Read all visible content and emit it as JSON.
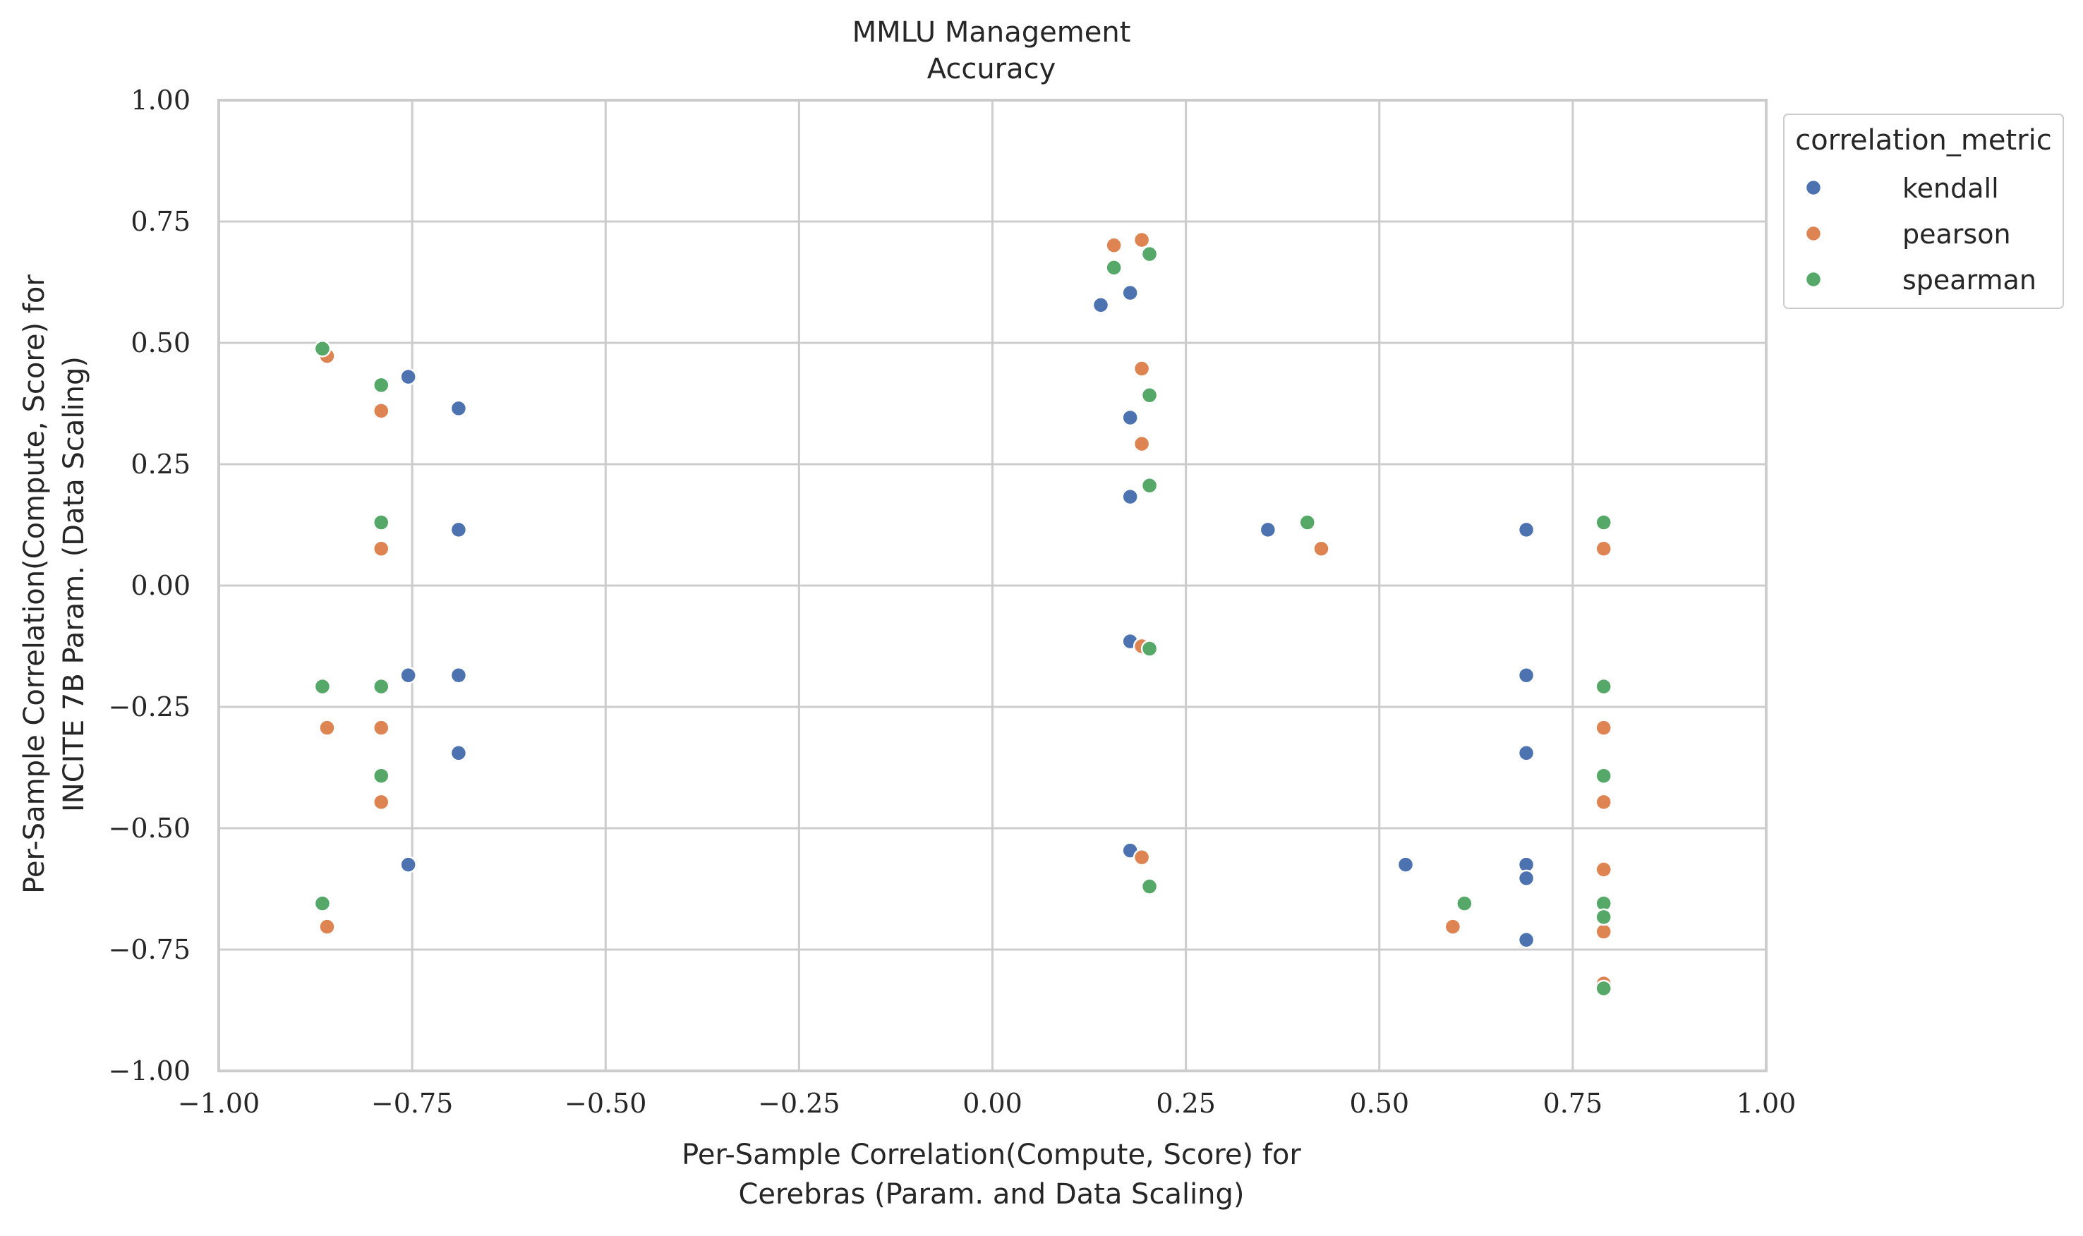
{
  "chart_data": {
    "type": "scatter",
    "title": "MMLU Management",
    "subtitle": "Accuracy",
    "xlabel": [
      "Per-Sample Correlation(Compute, Score) for",
      "Cerebras (Param. and Data Scaling)"
    ],
    "ylabel": [
      "Per-Sample Correlation(Compute, Score) for",
      "INCITE 7B Param. (Data Scaling)"
    ],
    "xlim": [
      -1.0,
      1.0
    ],
    "ylim": [
      -1.0,
      1.0
    ],
    "xticks": [
      -1.0,
      -0.75,
      -0.5,
      -0.25,
      0.0,
      0.25,
      0.5,
      0.75,
      1.0
    ],
    "yticks": [
      -1.0,
      -0.75,
      -0.5,
      -0.25,
      0.0,
      0.25,
      0.5,
      0.75,
      1.0
    ],
    "xtick_labels": [
      "−1.00",
      "−0.75",
      "−0.50",
      "−0.25",
      "0.00",
      "0.25",
      "0.50",
      "0.75",
      "1.00"
    ],
    "ytick_labels": [
      "−1.00",
      "−0.75",
      "−0.50",
      "−0.25",
      "0.00",
      "0.25",
      "0.50",
      "0.75",
      "1.00"
    ],
    "grid": true,
    "legend": {
      "title": "correlation_metric",
      "position": "outside-top-right"
    },
    "series": [
      {
        "name": "kendall",
        "color": "#4c72b0",
        "points": [
          [
            -0.755,
            0.43
          ],
          [
            -0.69,
            0.365
          ],
          [
            -0.69,
            0.115
          ],
          [
            -0.755,
            -0.185
          ],
          [
            -0.69,
            -0.185
          ],
          [
            -0.69,
            -0.345
          ],
          [
            -0.755,
            -0.575
          ],
          [
            0.14,
            0.578
          ],
          [
            0.178,
            0.603
          ],
          [
            0.178,
            0.346
          ],
          [
            0.178,
            0.183
          ],
          [
            0.178,
            -0.115
          ],
          [
            0.178,
            -0.546
          ],
          [
            0.356,
            0.115
          ],
          [
            0.534,
            -0.575
          ],
          [
            0.69,
            0.115
          ],
          [
            0.69,
            -0.185
          ],
          [
            0.69,
            -0.345
          ],
          [
            0.69,
            -0.575
          ],
          [
            0.69,
            -0.603
          ],
          [
            0.69,
            -0.73
          ]
        ]
      },
      {
        "name": "pearson",
        "color": "#dd8452",
        "points": [
          [
            -0.86,
            0.473
          ],
          [
            -0.79,
            0.36
          ],
          [
            -0.79,
            0.076
          ],
          [
            -0.86,
            -0.293
          ],
          [
            -0.79,
            -0.293
          ],
          [
            -0.79,
            -0.446
          ],
          [
            -0.86,
            -0.703
          ],
          [
            0.157,
            0.701
          ],
          [
            0.193,
            0.712
          ],
          [
            0.193,
            0.447
          ],
          [
            0.193,
            0.292
          ],
          [
            0.193,
            -0.125
          ],
          [
            0.193,
            -0.56
          ],
          [
            0.425,
            0.076
          ],
          [
            0.595,
            -0.703
          ],
          [
            0.79,
            0.076
          ],
          [
            0.79,
            -0.293
          ],
          [
            0.79,
            -0.446
          ],
          [
            0.79,
            -0.585
          ],
          [
            0.79,
            -0.713
          ],
          [
            0.79,
            -0.82
          ]
        ]
      },
      {
        "name": "spearman",
        "color": "#55a868",
        "points": [
          [
            -0.866,
            0.488
          ],
          [
            -0.79,
            0.413
          ],
          [
            -0.79,
            0.13
          ],
          [
            -0.866,
            -0.208
          ],
          [
            -0.79,
            -0.208
          ],
          [
            -0.79,
            -0.392
          ],
          [
            -0.866,
            -0.655
          ],
          [
            0.157,
            0.655
          ],
          [
            0.203,
            0.683
          ],
          [
            0.203,
            0.392
          ],
          [
            0.203,
            0.206
          ],
          [
            0.203,
            -0.13
          ],
          [
            0.203,
            -0.62
          ],
          [
            0.407,
            0.13
          ],
          [
            0.61,
            -0.655
          ],
          [
            0.79,
            0.13
          ],
          [
            0.79,
            -0.208
          ],
          [
            0.79,
            -0.392
          ],
          [
            0.79,
            -0.655
          ],
          [
            0.79,
            -0.683
          ],
          [
            0.79,
            -0.83
          ]
        ]
      }
    ]
  }
}
